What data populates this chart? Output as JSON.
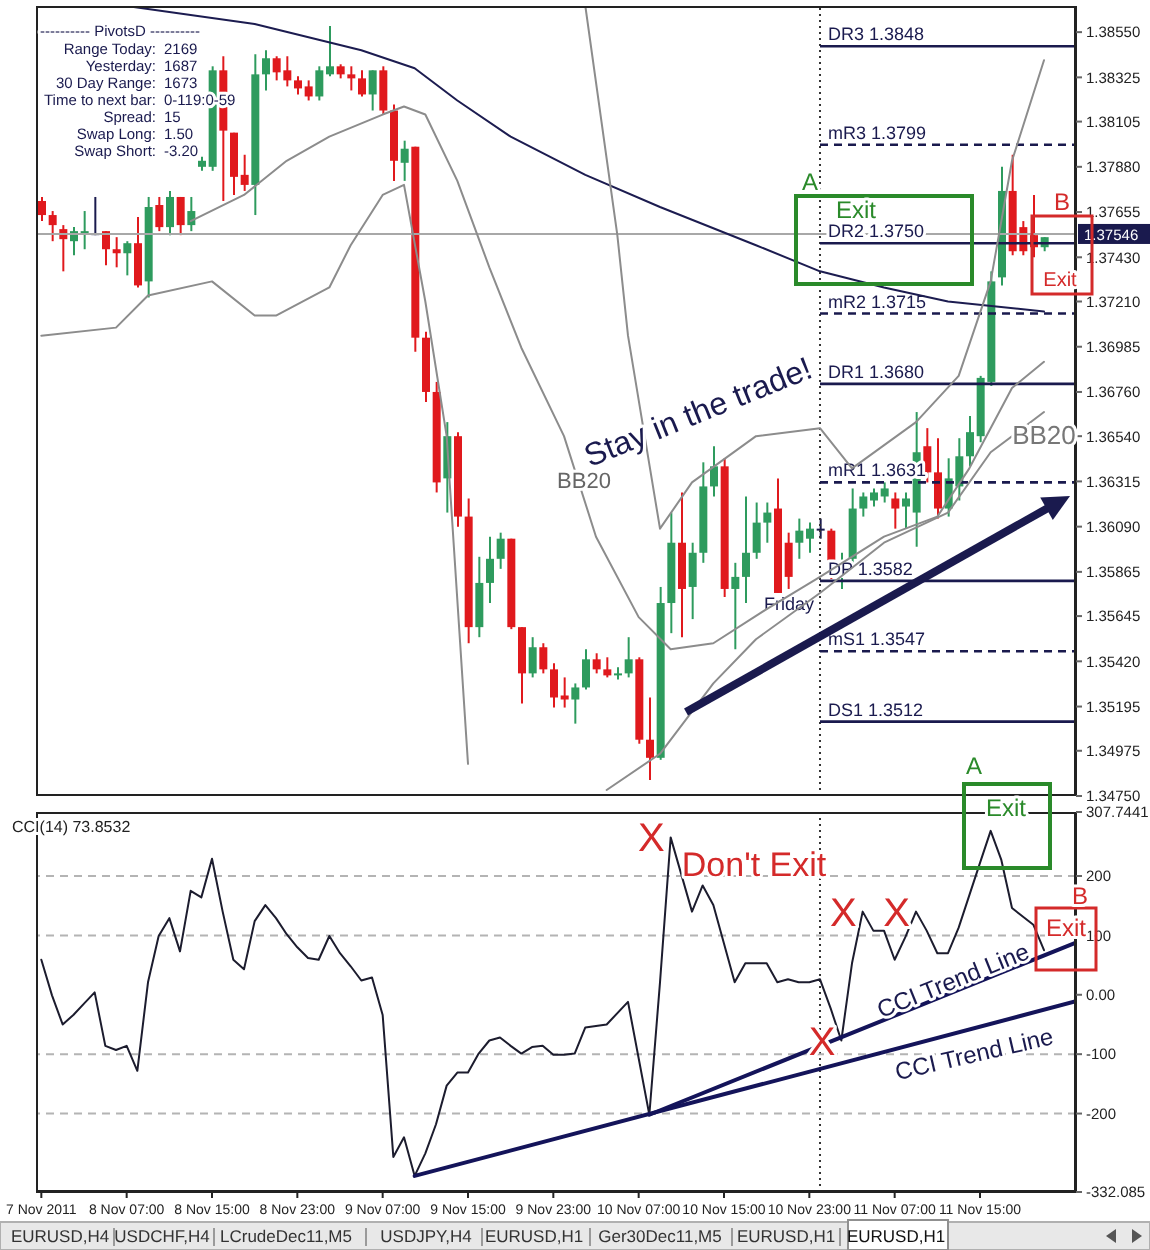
{
  "chart_data": [
    {
      "type": "candlestick",
      "xlim": [
        "2011-11-07T22:30",
        "2011-11-12T00:00"
      ],
      "ylim": [
        1.3475,
        1.3868
      ],
      "tick_labels": "y",
      "yticks": [
        {
          "value": 1.3855,
          "label": "1.38550"
        },
        {
          "value": 1.38325,
          "label": "1.38325"
        },
        {
          "value": 1.38105,
          "label": "1.38105"
        },
        {
          "value": 1.3788,
          "label": "1.37880"
        },
        {
          "value": 1.37655,
          "label": "1.37655"
        },
        {
          "value": 1.3743,
          "label": "1.37430"
        },
        {
          "value": 1.3721,
          "label": "1.37210"
        },
        {
          "value": 1.36985,
          "label": "1.36985"
        },
        {
          "value": 1.3676,
          "label": "1.36760"
        },
        {
          "value": 1.3654,
          "label": "1.36540"
        },
        {
          "value": 1.36315,
          "label": "1.36315"
        },
        {
          "value": 1.3609,
          "label": "1.36090"
        },
        {
          "value": 1.35865,
          "label": "1.35865"
        },
        {
          "value": 1.35645,
          "label": "1.35645"
        },
        {
          "value": 1.3542,
          "label": "1.35420"
        },
        {
          "value": 1.35195,
          "label": "1.35195"
        },
        {
          "value": 1.34975,
          "label": "1.34975"
        },
        {
          "value": 1.3475,
          "label": "1.34750"
        }
      ],
      "series": [
        {
          "color": "#2e9b5e",
          "x": [
            "2011-11-08T02:00",
            "2011-11-08T03:00",
            "2011-11-08T07:00",
            "2011-11-08T09:00",
            "2011-11-08T11:00",
            "2011-11-08T13:00",
            "2011-11-08T14:00",
            "2011-11-08T15:00",
            "2011-11-08T19:00",
            "2011-11-08T20:00",
            "2011-11-09T01:00",
            "2011-11-09T02:00",
            "2011-11-09T06:00",
            "2011-11-09T09:00",
            "2011-11-09T13:00",
            "2011-11-09T16:00",
            "2011-11-09T17:00",
            "2011-11-09T18:00",
            "2011-11-09T21:00",
            "2011-11-10T01:00",
            "2011-11-10T02:00",
            "2011-11-10T05:00",
            "2011-11-10T06:00",
            "2011-11-10T09:00",
            "2011-11-10T10:00",
            "2011-11-10T12:00",
            "2011-11-10T13:00",
            "2011-11-10T14:00",
            "2011-11-10T16:00",
            "2011-11-10T17:00",
            "2011-11-10T18:00",
            "2011-11-10T19:00",
            "2011-11-10T22:00",
            "2011-11-10T23:00",
            "2011-11-11T02:00",
            "2011-11-11T03:00",
            "2011-11-11T04:00",
            "2011-11-11T05:00",
            "2011-11-11T06:00",
            "2011-11-11T08:00",
            "2011-11-11T09:00",
            "2011-11-11T12:00",
            "2011-11-11T13:00",
            "2011-11-11T14:00",
            "2011-11-11T15:00",
            "2011-11-11T16:00",
            "2011-11-11T17:00",
            "2011-11-11T21:00"
          ],
          "ohlc": [
            [
              1.3751,
              1.3758,
              1.3744,
              1.3756
            ],
            [
              1.3755,
              1.3766,
              1.3747,
              1.3756
            ],
            [
              1.3745,
              1.3751,
              1.3734,
              1.375
            ],
            [
              1.3731,
              1.3773,
              1.3723,
              1.3768
            ],
            [
              1.3758,
              1.3776,
              1.3754,
              1.3773
            ],
            [
              1.3759,
              1.3773,
              1.3756,
              1.3766
            ],
            [
              1.3788,
              1.3793,
              1.3786,
              1.3791
            ],
            [
              1.3788,
              1.3838,
              1.3786,
              1.3836
            ],
            [
              1.3779,
              1.3844,
              1.3764,
              1.3834
            ],
            [
              1.3834,
              1.3846,
              1.3826,
              1.3842
            ],
            [
              1.3823,
              1.3838,
              1.3821,
              1.3836
            ],
            [
              1.3834,
              1.3858,
              1.3833,
              1.3838
            ],
            [
              1.3824,
              1.3836,
              1.3816,
              1.3836
            ],
            [
              1.379,
              1.3801,
              1.3781,
              1.3797
            ],
            [
              1.3633,
              1.3661,
              1.3616,
              1.3654
            ],
            [
              1.3559,
              1.3594,
              1.3554,
              1.3581
            ],
            [
              1.3581,
              1.3604,
              1.3571,
              1.3593
            ],
            [
              1.3593,
              1.3606,
              1.3588,
              1.3603
            ],
            [
              1.3536,
              1.3554,
              1.3534,
              1.3549
            ],
            [
              1.3523,
              1.3531,
              1.3511,
              1.3529
            ],
            [
              1.3529,
              1.3548,
              1.3528,
              1.3543
            ],
            [
              1.3535,
              1.3539,
              1.3533,
              1.3536
            ],
            [
              1.3536,
              1.3554,
              1.3534,
              1.3543
            ],
            [
              1.3494,
              1.3579,
              1.3493,
              1.3571
            ],
            [
              1.3571,
              1.3616,
              1.3556,
              1.3601
            ],
            [
              1.3579,
              1.3601,
              1.3563,
              1.3596
            ],
            [
              1.3596,
              1.3641,
              1.3591,
              1.3629
            ],
            [
              1.3629,
              1.3649,
              1.3624,
              1.3639
            ],
            [
              1.3578,
              1.3591,
              1.3548,
              1.3584
            ],
            [
              1.3584,
              1.3624,
              1.3571,
              1.3596
            ],
            [
              1.3596,
              1.3621,
              1.3593,
              1.3611
            ],
            [
              1.3611,
              1.3621,
              1.3601,
              1.3616
            ],
            [
              1.3601,
              1.3613,
              1.3593,
              1.3607
            ],
            [
              1.3603,
              1.3611,
              1.3596,
              1.3608
            ],
            [
              1.3585,
              1.3596,
              1.3578,
              1.3591
            ],
            [
              1.3593,
              1.3628,
              1.3591,
              1.3618
            ],
            [
              1.3618,
              1.3626,
              1.3614,
              1.3624
            ],
            [
              1.3622,
              1.3628,
              1.3619,
              1.3626
            ],
            [
              1.3624,
              1.3631,
              1.3621,
              1.3628
            ],
            [
              1.3619,
              1.3626,
              1.3608,
              1.3623
            ],
            [
              1.3616,
              1.3666,
              1.3599,
              1.3646
            ],
            [
              1.3618,
              1.3643,
              1.3614,
              1.3633
            ],
            [
              1.3629,
              1.3653,
              1.3622,
              1.3644
            ],
            [
              1.3644,
              1.3664,
              1.3639,
              1.3656
            ],
            [
              1.3654,
              1.3684,
              1.3651,
              1.3683
            ],
            [
              1.3681,
              1.3736,
              1.3679,
              1.3731
            ],
            [
              1.3733,
              1.3788,
              1.3729,
              1.3776
            ],
            [
              1.3748,
              1.3753,
              1.3746,
              1.3753
            ]
          ]
        },
        {
          "color": "#e0191d",
          "x": [
            "2011-11-07T23:00",
            "2011-11-08T00:00",
            "2011-11-08T01:00",
            "2011-11-08T05:00",
            "2011-11-08T06:00",
            "2011-11-08T08:00",
            "2011-11-08T10:00",
            "2011-11-08T12:00",
            "2011-11-08T16:00",
            "2011-11-08T17:00",
            "2011-11-08T18:00",
            "2011-11-08T21:00",
            "2011-11-08T22:00",
            "2011-11-08T23:00",
            "2011-11-09T00:00",
            "2011-11-09T03:00",
            "2011-11-09T04:00",
            "2011-11-09T05:00",
            "2011-11-09T07:00",
            "2011-11-09T08:00",
            "2011-11-09T10:00",
            "2011-11-09T11:00",
            "2011-11-09T12:00",
            "2011-11-09T14:00",
            "2011-11-09T15:00",
            "2011-11-09T19:00",
            "2011-11-09T20:00",
            "2011-11-09T22:00",
            "2011-11-09T23:00",
            "2011-11-10T00:00",
            "2011-11-10T03:00",
            "2011-11-10T04:00",
            "2011-11-10T07:00",
            "2011-11-10T08:00",
            "2011-11-10T11:00",
            "2011-11-10T15:00",
            "2011-11-10T20:00",
            "2011-11-10T21:00",
            "2011-11-11T01:00",
            "2011-11-11T07:00",
            "2011-11-11T10:00",
            "2011-11-11T11:00",
            "2011-11-11T18:00",
            "2011-11-11T19:00",
            "2011-11-11T20:00"
          ],
          "ohlc": [
            [
              1.3771,
              1.3773,
              1.3761,
              1.3764
            ],
            [
              1.3764,
              1.3766,
              1.3751,
              1.3759
            ],
            [
              1.3757,
              1.3759,
              1.3736,
              1.3752
            ],
            [
              1.3756,
              1.3756,
              1.3739,
              1.3747
            ],
            [
              1.3747,
              1.3753,
              1.3738,
              1.3745
            ],
            [
              1.375,
              1.3763,
              1.3728,
              1.3729
            ],
            [
              1.3769,
              1.3773,
              1.3756,
              1.3758
            ],
            [
              1.3773,
              1.3773,
              1.3754,
              1.3759
            ],
            [
              1.3836,
              1.3843,
              1.3771,
              1.3806
            ],
            [
              1.3805,
              1.3805,
              1.3774,
              1.3783
            ],
            [
              1.3784,
              1.3794,
              1.3776,
              1.3779
            ],
            [
              1.3842,
              1.3843,
              1.3831,
              1.3835
            ],
            [
              1.3836,
              1.3843,
              1.3828,
              1.3831
            ],
            [
              1.3831,
              1.3833,
              1.3824,
              1.3827
            ],
            [
              1.3828,
              1.3831,
              1.3821,
              1.3823
            ],
            [
              1.3838,
              1.3839,
              1.3832,
              1.3834
            ],
            [
              1.3834,
              1.3838,
              1.3826,
              1.3832
            ],
            [
              1.3832,
              1.3836,
              1.3823,
              1.3824
            ],
            [
              1.3836,
              1.3838,
              1.3814,
              1.3816
            ],
            [
              1.3816,
              1.3819,
              1.3781,
              1.3791
            ],
            [
              1.3798,
              1.3798,
              1.3696,
              1.3703
            ],
            [
              1.3703,
              1.3706,
              1.3671,
              1.3676
            ],
            [
              1.3676,
              1.3681,
              1.3626,
              1.3631
            ],
            [
              1.3654,
              1.3656,
              1.3609,
              1.3614
            ],
            [
              1.3614,
              1.3623,
              1.3551,
              1.3559
            ],
            [
              1.3603,
              1.3603,
              1.3558,
              1.3559
            ],
            [
              1.3559,
              1.3559,
              1.3521,
              1.3536
            ],
            [
              1.3549,
              1.3551,
              1.3536,
              1.3538
            ],
            [
              1.3538,
              1.3541,
              1.3519,
              1.3524
            ],
            [
              1.3525,
              1.3534,
              1.3519,
              1.3523
            ],
            [
              1.3543,
              1.3546,
              1.3536,
              1.3538
            ],
            [
              1.3538,
              1.3544,
              1.3534,
              1.3535
            ],
            [
              1.3543,
              1.3544,
              1.3501,
              1.3503
            ],
            [
              1.3503,
              1.3524,
              1.3483,
              1.3494
            ],
            [
              1.3601,
              1.3626,
              1.3554,
              1.3578
            ],
            [
              1.3639,
              1.3643,
              1.3574,
              1.3578
            ],
            [
              1.3618,
              1.3633,
              1.3576,
              1.3576
            ],
            [
              1.3601,
              1.3606,
              1.3578,
              1.3584
            ],
            [
              1.3607,
              1.3608,
              1.3583,
              1.3591
            ],
            [
              1.3623,
              1.3626,
              1.3608,
              1.3618
            ],
            [
              1.3649,
              1.3658,
              1.3631,
              1.3636
            ],
            [
              1.3636,
              1.3653,
              1.3613,
              1.3618
            ],
            [
              1.3776,
              1.3794,
              1.3744,
              1.3746
            ],
            [
              1.3758,
              1.3761,
              1.3744,
              1.3746
            ],
            [
              1.3754,
              1.3774,
              1.3743,
              1.3748
            ]
          ]
        },
        {
          "color": "#1a1a4e",
          "x": [
            "2011-11-08T04:00",
            "2011-11-11T00:00"
          ],
          "ohlc": [
            [
              1.3755,
              1.3773,
              1.3754,
              1.3755
            ],
            [
              1.3608,
              1.3613,
              1.3603,
              1.3608
            ]
          ]
        },
        {
          "type": "line",
          "color": "#1c1c50",
          "x": [
            "2011-11-08T07:00",
            "2011-11-08T19:00",
            "2011-11-09T05:00",
            "2011-11-09T10:00",
            "2011-11-09T14:00",
            "2011-11-09T19:00",
            "2011-11-10T02:00",
            "2011-11-10T09:00",
            "2011-11-10T18:00",
            "2011-11-11T00:00",
            "2011-11-11T06:00",
            "2011-11-11T12:00",
            "2011-11-11T21:00"
          ],
          "values": [
            1.3868,
            1.3859,
            1.3846,
            1.3837,
            1.3821,
            1.3803,
            1.3784,
            1.3768,
            1.3749,
            1.3736,
            1.3728,
            1.3721,
            1.3716
          ]
        },
        {
          "type": "line",
          "color": "#8c8c8c",
          "x": [
            "2011-11-08T13:00",
            "2011-11-08T18:00",
            "2011-11-08T22:00",
            "2011-11-09T02:00",
            "2011-11-09T07:00",
            "2011-11-09T09:00",
            "2011-11-09T11:00",
            "2011-11-09T14:00",
            "2011-11-09T17:00",
            "2011-11-09T20:00",
            "2011-11-10T00:00",
            "2011-11-10T03:00",
            "2011-11-10T07:00",
            "2011-11-10T10:00",
            "2011-11-10T14:00",
            "2011-11-10T19:00",
            "2011-11-11T00:00",
            "2011-11-11T06:00",
            "2011-11-11T11:00",
            "2011-11-11T14:00",
            "2011-11-11T18:00",
            "2011-11-11T21:00"
          ],
          "values": [
            1.3761,
            1.3774,
            1.3791,
            1.3803,
            1.3814,
            1.3818,
            1.3814,
            1.3781,
            1.3738,
            1.3698,
            1.3654,
            1.3604,
            1.3564,
            1.3548,
            1.3551,
            1.3568,
            1.3584,
            1.3604,
            1.3614,
            1.3638,
            1.3678,
            1.3691
          ]
        },
        {
          "type": "line",
          "color": "#8c8c8c",
          "x": [
            "2011-11-10T02:00",
            "2011-11-10T05:00",
            "2011-11-10T06:00",
            "2011-11-10T09:00",
            "2011-11-10T12:00",
            "2011-11-10T18:00",
            "2011-11-11T00:00",
            "2011-11-11T03:00",
            "2011-11-11T09:00",
            "2011-11-11T13:00",
            "2011-11-11T16:00",
            "2011-11-11T18:00",
            "2011-11-11T21:00"
          ],
          "values": [
            1.3868,
            1.3754,
            1.3704,
            1.3608,
            1.3631,
            1.3654,
            1.3658,
            1.3638,
            1.3661,
            1.3684,
            1.3731,
            1.3791,
            1.3841
          ]
        },
        {
          "type": "line",
          "color": "#8c8c8c",
          "x": [
            "2011-11-07T23:00",
            "2011-11-08T06:00",
            "2011-11-08T09:00",
            "2011-11-08T15:00",
            "2011-11-08T19:00",
            "2011-11-08T21:00",
            "2011-11-09T02:00",
            "2011-11-09T04:00",
            "2011-11-09T07:00",
            "2011-11-09T09:00",
            "2011-11-09T11:00",
            "2011-11-09T13:00",
            "2011-11-09T15:00",
            "2011-11-09T22:00",
            "2011-11-10T04:00",
            "2011-11-10T09:00",
            "2011-11-10T14:00",
            "2011-11-10T18:00",
            "2011-11-11T00:00",
            "2011-11-11T06:00",
            "2011-11-11T12:00",
            "2011-11-11T16:00",
            "2011-11-11T21:00"
          ],
          "values": [
            1.3704,
            1.3708,
            1.3724,
            1.3731,
            1.3714,
            1.3714,
            1.3728,
            1.3749,
            1.3774,
            1.3779,
            1.3721,
            1.3654,
            1.3491,
            null,
            1.3478,
            1.3496,
            1.3531,
            1.3553,
            1.3576,
            1.3601,
            1.3616,
            1.3646,
            1.3666
          ]
        }
      ],
      "ref_lines": [
        {
          "axis": "x",
          "value": "2011-11-11T00:00",
          "label": "Friday",
          "line_style": "dotted",
          "color": "#333333"
        },
        {
          "axis": "y",
          "value": 1.37546,
          "label": "1.37546",
          "color": "#a8a8a8"
        },
        {
          "axis": "y",
          "value": 1.3848,
          "label": "DR3 1.3848",
          "color": "#1a1a4e"
        },
        {
          "axis": "y",
          "value": 1.3799,
          "label": "mR3 1.3799",
          "color": "#1a1a4e",
          "line_style": "dashed"
        },
        {
          "axis": "y",
          "value": 1.375,
          "label": "DR2 1.3750",
          "color": "#1a1a4e"
        },
        {
          "axis": "y",
          "value": 1.3715,
          "label": "mR2 1.3715",
          "color": "#1a1a4e",
          "line_style": "dashed"
        },
        {
          "axis": "y",
          "value": 1.368,
          "label": "DR1 1.3680",
          "color": "#1a1a4e"
        },
        {
          "axis": "y",
          "value": 1.3631,
          "label": "mR1 1.3631",
          "color": "#1a1a4e",
          "line_style": "dashed"
        },
        {
          "axis": "y",
          "value": 1.3582,
          "label": "DP 1.3582",
          "color": "#1a1a4e"
        },
        {
          "axis": "y",
          "value": 1.3547,
          "label": "mS1 1.3547",
          "color": "#1a1a4e",
          "line_style": "dashed"
        },
        {
          "axis": "y",
          "value": 1.3512,
          "label": "DS1 1.3512",
          "color": "#1a1a4e"
        }
      ],
      "annotations": [
        "---------- PivotsD ----------",
        "Range Today: 2169",
        "Yesterday: 1687",
        "30 Day Range: 1673",
        "Time to next bar: 0-119:0-59",
        "Spread: 15",
        "Swap Long: 1.50",
        "Swap Short: -3.20",
        "BB20",
        "BB20",
        "Stay in the trade!",
        "A",
        "Exit",
        "B",
        "Exit"
      ]
    },
    {
      "type": "line",
      "title": "CCI(14) 73.8532",
      "xlim": [
        "2011-11-07T22:30",
        "2011-11-12T00:00"
      ],
      "ylim": [
        -332.085,
        307.7441
      ],
      "xticks": [
        {
          "value": "2011-11-07T23:00",
          "label": "7 Nov 2011"
        },
        {
          "value": "2011-11-08T07:00",
          "label": "8 Nov 07:00"
        },
        {
          "value": "2011-11-08T15:00",
          "label": "8 Nov 15:00"
        },
        {
          "value": "2011-11-08T23:00",
          "label": "8 Nov 23:00"
        },
        {
          "value": "2011-11-09T07:00",
          "label": "9 Nov 07:00"
        },
        {
          "value": "2011-11-09T15:00",
          "label": "9 Nov 15:00"
        },
        {
          "value": "2011-11-09T23:00",
          "label": "9 Nov 23:00"
        },
        {
          "value": "2011-11-10T07:00",
          "label": "10 Nov 07:00"
        },
        {
          "value": "2011-11-10T15:00",
          "label": "10 Nov 15:00"
        },
        {
          "value": "2011-11-10T23:00",
          "label": "10 Nov 23:00"
        },
        {
          "value": "2011-11-11T07:00",
          "label": "11 Nov 07:00"
        },
        {
          "value": "2011-11-11T15:00",
          "label": "11 Nov 15:00"
        }
      ],
      "yticks": [
        {
          "value": 307.7441,
          "label": "307.7441"
        },
        200,
        100,
        {
          "value": 0,
          "label": "0.00"
        },
        -100,
        -200,
        {
          "value": -332.085,
          "label": "-332.085"
        }
      ],
      "series": [
        {
          "color": "#1c1c2e",
          "x": [
            "2011-11-07T23:00",
            "2011-11-08T00:00",
            "2011-11-08T01:00",
            "2011-11-08T02:00",
            "2011-11-08T03:00",
            "2011-11-08T04:00",
            "2011-11-08T05:00",
            "2011-11-08T06:00",
            "2011-11-08T07:00",
            "2011-11-08T08:00",
            "2011-11-08T09:00",
            "2011-11-08T10:00",
            "2011-11-08T11:00",
            "2011-11-08T12:00",
            "2011-11-08T13:00",
            "2011-11-08T14:00",
            "2011-11-08T15:00",
            "2011-11-08T16:00",
            "2011-11-08T17:00",
            "2011-11-08T18:00",
            "2011-11-08T19:00",
            "2011-11-08T20:00",
            "2011-11-08T21:00",
            "2011-11-08T22:00",
            "2011-11-08T23:00",
            "2011-11-09T00:00",
            "2011-11-09T01:00",
            "2011-11-09T02:00",
            "2011-11-09T03:00",
            "2011-11-09T04:00",
            "2011-11-09T05:00",
            "2011-11-09T06:00",
            "2011-11-09T07:00",
            "2011-11-09T08:00",
            "2011-11-09T09:00",
            "2011-11-09T10:00",
            "2011-11-09T11:00",
            "2011-11-09T12:00",
            "2011-11-09T13:00",
            "2011-11-09T14:00",
            "2011-11-09T15:00",
            "2011-11-09T16:00",
            "2011-11-09T17:00",
            "2011-11-09T18:00",
            "2011-11-09T19:00",
            "2011-11-09T20:00",
            "2011-11-09T21:00",
            "2011-11-09T22:00",
            "2011-11-09T23:00",
            "2011-11-10T00:00",
            "2011-11-10T01:00",
            "2011-11-10T02:00",
            "2011-11-10T04:00",
            "2011-11-10T06:00",
            "2011-11-10T08:00",
            "2011-11-10T09:00",
            "2011-11-10T10:00",
            "2011-11-10T12:00",
            "2011-11-10T13:00",
            "2011-11-10T14:00",
            "2011-11-10T16:00",
            "2011-11-10T17:00",
            "2011-11-10T18:00",
            "2011-11-10T19:00",
            "2011-11-10T20:00",
            "2011-11-10T21:00",
            "2011-11-10T22:00",
            "2011-11-10T23:00",
            "2011-11-11T00:00",
            "2011-11-11T01:00",
            "2011-11-11T02:00",
            "2011-11-11T03:00",
            "2011-11-11T04:00",
            "2011-11-11T05:00",
            "2011-11-11T06:00",
            "2011-11-11T07:00",
            "2011-11-11T08:00",
            "2011-11-11T09:00",
            "2011-11-11T10:00",
            "2011-11-11T11:00",
            "2011-11-11T12:00",
            "2011-11-11T13:00",
            "2011-11-11T15:00",
            "2011-11-11T16:00",
            "2011-11-11T17:00",
            "2011-11-11T18:00",
            "2011-11-11T20:00",
            "2011-11-11T21:00"
          ],
          "values": [
            59,
            -1,
            -50,
            -34,
            -15,
            4,
            -86,
            -93,
            -86,
            -128,
            21,
            99,
            129,
            73,
            175,
            164,
            229,
            140,
            59,
            43,
            124,
            151,
            129,
            102,
            80,
            62,
            59,
            99,
            70,
            48,
            24,
            29,
            -34,
            -273,
            -240,
            -305,
            -267,
            -218,
            -153,
            -131,
            -131,
            -99,
            -77,
            -72,
            -86,
            -99,
            -88,
            -86,
            -101,
            -101,
            -99,
            -55,
            -50,
            -12,
            -202,
            21,
            265,
            140,
            184,
            151,
            21,
            53,
            53,
            53,
            21,
            26,
            21,
            21,
            26,
            -23,
            -77,
            53,
            140,
            108,
            108,
            59,
            97,
            140,
            108,
            70,
            70,
            113,
            222,
            276,
            227,
            146,
            118,
            75
          ]
        },
        {
          "type": "line",
          "color": "#14145a",
          "x": [
            "2011-11-09T10:00",
            "2011-11-12T00:00"
          ],
          "values": [
            -305,
            -11
          ]
        },
        {
          "type": "line",
          "color": "#14145a",
          "x": [
            "2011-11-10T08:00",
            "2011-11-12T00:00"
          ],
          "values": [
            -202,
            88
          ]
        }
      ],
      "ref_lines": [
        {
          "axis": "x",
          "value": "2011-11-11T00:00",
          "line_style": "dotted",
          "color": "#333333"
        },
        {
          "axis": "y",
          "value": 200,
          "line_style": "dashed",
          "color": "#b4b4b4"
        },
        {
          "axis": "y",
          "value": 100,
          "line_style": "dashed",
          "color": "#b4b4b4"
        },
        {
          "axis": "y",
          "value": -100,
          "line_style": "dashed",
          "color": "#b4b4b4"
        },
        {
          "axis": "y",
          "value": -200,
          "line_style": "dashed",
          "color": "#b4b4b4"
        }
      ],
      "annotations": [
        "Don't Exit",
        "CCI Trend Line",
        "CCI Trend Line",
        "A",
        "Exit",
        "B",
        "Exit",
        {
          "text": "X",
          "x": "2011-11-10T10:00",
          "y": 265
        },
        {
          "text": "X",
          "x": "2011-11-11T02:00",
          "y": -77
        },
        {
          "text": "X",
          "x": "2011-11-11T04:00",
          "y": 140
        },
        {
          "text": "X",
          "x": "2011-11-11T09:00",
          "y": 140
        },
        "EURUSD,H4",
        "USDCHF,H4",
        "LCrudeDec11,M5",
        "USDJPY,H4",
        "EURUSD,H1",
        "Ger30Dec11,M5",
        "EURUSD,H1",
        "EURUSD,H1"
      ]
    }
  ]
}
